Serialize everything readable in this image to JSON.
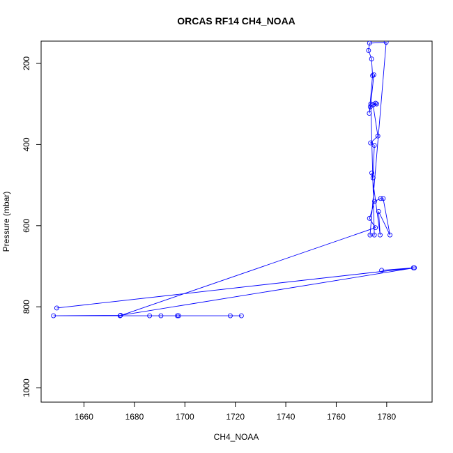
{
  "chart_data": {
    "type": "line",
    "title": "ORCAS RF14 CH4_NOAA",
    "xlabel": "CH4_NOAA",
    "ylabel": "Pressure (mbar)",
    "xlim": [
      1643,
      1798
    ],
    "ylim": [
      1035,
      145
    ],
    "y_reversed": true,
    "x_ticks": [
      1660,
      1680,
      1700,
      1720,
      1740,
      1760,
      1780
    ],
    "y_ticks": [
      200,
      400,
      600,
      800,
      1000
    ],
    "markers": "open-circle",
    "series": [
      {
        "color": "#0000ff",
        "points": [
          [
            1778.0,
            710.0
          ],
          [
            1790.6,
            704.0
          ],
          [
            1649.2,
            803.0
          ],
          [
            1791.0,
            704.0
          ],
          [
            1674.5,
            821.0
          ],
          [
            1647.9,
            822.0
          ],
          [
            1686.0,
            822.0
          ],
          [
            1690.5,
            822.0
          ],
          [
            1697.0,
            822.0
          ],
          [
            1697.5,
            822.0
          ],
          [
            1718.0,
            822.0
          ],
          [
            1722.4,
            822.0
          ],
          [
            1674.3,
            822.0
          ],
          [
            1775.5,
            605.0
          ],
          [
            1773.2,
            582.0
          ],
          [
            1775.2,
            540.0
          ],
          [
            1777.6,
            533.0
          ],
          [
            1778.6,
            533.0
          ],
          [
            1781.3,
            623.0
          ],
          [
            1776.8,
            565.0
          ],
          [
            1777.4,
            623.0
          ],
          [
            1774.1,
            470.0
          ],
          [
            1774.6,
            482.0
          ],
          [
            1775.1,
            402.0
          ],
          [
            1773.6,
            396.0
          ],
          [
            1776.5,
            379.0
          ],
          [
            1774.6,
            302.0
          ],
          [
            1776.0,
            300.0
          ],
          [
            1775.6,
            298.0
          ],
          [
            1773.5,
            307.0
          ],
          [
            1773.1,
            323.0
          ],
          [
            1774.4,
            230.0
          ],
          [
            1774.0,
            189.0
          ],
          [
            1772.8,
            168.0
          ],
          [
            1773.2,
            150.0
          ],
          [
            1779.8,
            148.0
          ],
          [
            1773.4,
            623.0
          ],
          [
            1775.1,
            623.0
          ],
          [
            1773.7,
            300.0
          ],
          [
            1774.9,
            228.0
          ]
        ]
      }
    ]
  }
}
